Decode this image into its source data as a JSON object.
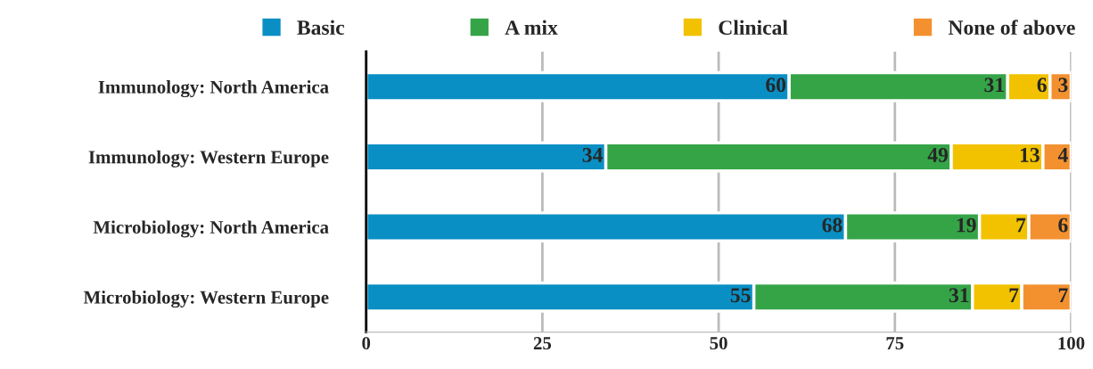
{
  "chart_data": {
    "type": "bar",
    "orientation": "horizontal",
    "stacked": true,
    "categories": [
      "Immunology: North America",
      "Immunology: Western Europe",
      "Microbiology: North America",
      "Microbiology: Western Europe"
    ],
    "series": [
      {
        "name": "Basic",
        "color": "#0a8fc4",
        "values": [
          60,
          34,
          68,
          55
        ]
      },
      {
        "name": "A mix",
        "color": "#35a447",
        "values": [
          31,
          49,
          19,
          31
        ]
      },
      {
        "name": "Clinical",
        "color": "#f2c200",
        "values": [
          6,
          13,
          7,
          7
        ]
      },
      {
        "name": "None of above",
        "color": "#f39130",
        "values": [
          3,
          4,
          6,
          7
        ]
      }
    ],
    "xlim": [
      0,
      100
    ],
    "xticks": [
      0,
      25,
      50,
      75,
      100
    ],
    "grid": "x",
    "legend": "top",
    "data_labels": true
  }
}
